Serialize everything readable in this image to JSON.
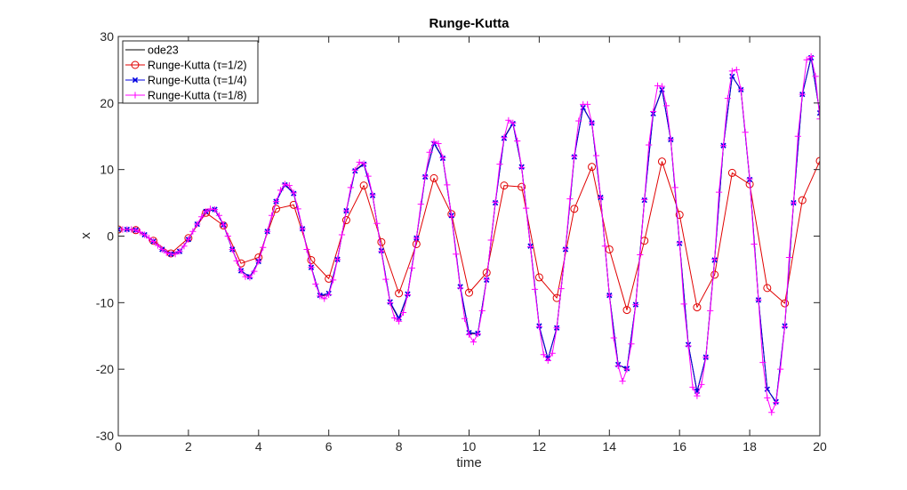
{
  "chart_data": {
    "type": "line",
    "title": "Runge-Kutta",
    "xlabel": "time",
    "ylabel": "x",
    "xlim": [
      0,
      20
    ],
    "ylim": [
      -30,
      30
    ],
    "xticks": [
      0,
      2,
      4,
      6,
      8,
      10,
      12,
      14,
      16,
      18,
      20
    ],
    "yticks": [
      -30,
      -20,
      -10,
      0,
      10,
      20,
      30
    ],
    "xtick_labels": [
      "0",
      "2",
      "4",
      "6",
      "8",
      "10",
      "12",
      "14",
      "16",
      "18",
      "20"
    ],
    "ytick_labels": [
      "-30",
      "-20",
      "-10",
      "0",
      "10",
      "20",
      "30"
    ],
    "grid": false,
    "legend_position": "top-left",
    "series": [
      {
        "name": "ode23",
        "color": "#000000",
        "marker": "none",
        "x": [
          0,
          0.25,
          0.5,
          0.75,
          1.0,
          1.25,
          1.5,
          1.75,
          2.0,
          2.25,
          2.5,
          2.75,
          3.0,
          3.25,
          3.5,
          3.75,
          4.0,
          4.25,
          4.5,
          4.75,
          5.0,
          5.25,
          5.5,
          5.75,
          6.0,
          6.25,
          6.5,
          6.75,
          7.0,
          7.25,
          7.5,
          7.75,
          8.0,
          8.25,
          8.5,
          8.75,
          9.0,
          9.25,
          9.5,
          9.75,
          10.0,
          10.25,
          10.5,
          10.75,
          11.0,
          11.25,
          11.5,
          11.75,
          12.0,
          12.25,
          12.5,
          12.75,
          13.0,
          13.25,
          13.5,
          13.75,
          14.0,
          14.25,
          14.5,
          14.75,
          15.0,
          15.25,
          15.5,
          15.75,
          16.0,
          16.25,
          16.5,
          16.75,
          17.0,
          17.25,
          17.5,
          17.75,
          18.0,
          18.25,
          18.5,
          18.75,
          19.0,
          19.25,
          19.5,
          19.75,
          20.0
        ],
        "values": [
          1.0,
          1.0,
          0.9,
          0.2,
          -0.8,
          -2.0,
          -2.7,
          -2.3,
          -0.5,
          1.8,
          3.7,
          4.0,
          1.7,
          -2.0,
          -5.2,
          -6.2,
          -3.8,
          0.7,
          5.2,
          7.8,
          6.5,
          1.1,
          -4.7,
          -9.0,
          -8.8,
          -3.5,
          3.8,
          9.9,
          10.9,
          6.2,
          -2.3,
          -10.0,
          -12.5,
          -8.8,
          -0.3,
          9.0,
          14.0,
          11.8,
          3.0,
          -7.8,
          -14.6,
          -14.7,
          -6.5,
          5.1,
          14.8,
          17.0,
          10.3,
          -1.6,
          -13.6,
          -18.5,
          -13.8,
          -1.9,
          12.0,
          19.4,
          17.0,
          5.8,
          -8.9,
          -19.3,
          -20.0,
          -10.3,
          5.5,
          18.5,
          22.1,
          14.5,
          -1.0,
          -16.3,
          -23.4,
          -18.2,
          -3.5,
          13.6,
          24.0,
          22.0,
          8.6,
          -9.6,
          -23.0,
          -25.0,
          -13.6,
          5.0,
          21.3,
          26.9,
          18.4
        ]
      },
      {
        "name": "Runge-Kutta  (τ=1/2)",
        "color": "#e00000",
        "marker": "circle",
        "x": [
          0,
          0.5,
          1.0,
          1.5,
          2.0,
          2.5,
          3.0,
          3.5,
          4.0,
          4.5,
          5.0,
          5.5,
          6.0,
          6.5,
          7.0,
          7.5,
          8.0,
          8.5,
          9.0,
          9.5,
          10.0,
          10.5,
          11.0,
          11.5,
          12.0,
          12.5,
          13.0,
          13.5,
          14.0,
          14.5,
          15.0,
          15.5,
          16.0,
          16.5,
          17.0,
          17.5,
          18.0,
          18.5,
          19.0,
          19.5,
          20.0
        ],
        "values": [
          1.0,
          0.9,
          -0.7,
          -2.6,
          -0.3,
          3.5,
          1.6,
          -4.1,
          -3.2,
          4.1,
          4.7,
          -3.6,
          -6.4,
          2.4,
          7.6,
          -0.9,
          -8.6,
          -1.2,
          8.7,
          3.3,
          -8.5,
          -5.5,
          7.6,
          7.4,
          -6.2,
          -9.3,
          4.1,
          10.4,
          -2.0,
          -11.1,
          -0.7,
          11.2,
          3.2,
          -10.7,
          -5.8,
          9.5,
          7.8,
          -7.8,
          -10.1,
          5.4,
          11.3
        ]
      },
      {
        "name": "Runge-Kutta  (τ=1/4)",
        "color": "#0000e0",
        "marker": "x",
        "x": [
          0,
          0.25,
          0.5,
          0.75,
          1.0,
          1.25,
          1.5,
          1.75,
          2.0,
          2.25,
          2.5,
          2.75,
          3.0,
          3.25,
          3.5,
          3.75,
          4.0,
          4.25,
          4.5,
          4.75,
          5.0,
          5.25,
          5.5,
          5.75,
          6.0,
          6.25,
          6.5,
          6.75,
          7.0,
          7.25,
          7.5,
          7.75,
          8.0,
          8.25,
          8.5,
          8.75,
          9.0,
          9.25,
          9.5,
          9.75,
          10.0,
          10.25,
          10.5,
          10.75,
          11.0,
          11.25,
          11.5,
          11.75,
          12.0,
          12.25,
          12.5,
          12.75,
          13.0,
          13.25,
          13.5,
          13.75,
          14.0,
          14.25,
          14.5,
          14.75,
          15.0,
          15.25,
          15.5,
          15.75,
          16.0,
          16.25,
          16.5,
          16.75,
          17.0,
          17.25,
          17.5,
          17.75,
          18.0,
          18.25,
          18.5,
          18.75,
          19.0,
          19.25,
          19.5,
          19.75,
          20.0
        ],
        "values": [
          1.0,
          1.0,
          0.9,
          0.2,
          -0.8,
          -2.0,
          -2.7,
          -2.3,
          -0.5,
          1.8,
          3.7,
          4.0,
          1.7,
          -2.0,
          -5.2,
          -6.1,
          -3.8,
          0.7,
          5.2,
          7.7,
          6.4,
          1.1,
          -4.7,
          -8.9,
          -8.6,
          -3.5,
          3.8,
          9.8,
          10.8,
          6.1,
          -2.2,
          -9.9,
          -12.3,
          -8.7,
          -0.3,
          8.9,
          13.9,
          11.7,
          3.1,
          -7.6,
          -14.5,
          -14.6,
          -6.6,
          5.0,
          14.7,
          16.9,
          10.4,
          -1.5,
          -13.5,
          -18.4,
          -13.8,
          -2.0,
          11.9,
          19.3,
          17.0,
          5.8,
          -8.9,
          -19.3,
          -19.9,
          -10.3,
          5.4,
          18.4,
          22.0,
          14.5,
          -1.1,
          -16.3,
          -23.3,
          -18.2,
          -3.6,
          13.6,
          24.0,
          22.0,
          8.5,
          -9.6,
          -23.0,
          -24.9,
          -13.5,
          5.0,
          21.3,
          26.8,
          18.5
        ]
      },
      {
        "name": "Runge-Kutta  (τ=1/8)",
        "color": "#ff00ff",
        "marker": "plus",
        "x": [
          0,
          0.125,
          0.25,
          0.375,
          0.5,
          0.625,
          0.75,
          0.875,
          1.0,
          1.125,
          1.25,
          1.375,
          1.5,
          1.625,
          1.75,
          1.875,
          2.0,
          2.125,
          2.25,
          2.375,
          2.5,
          2.625,
          2.75,
          2.875,
          3.0,
          3.125,
          3.25,
          3.375,
          3.5,
          3.625,
          3.75,
          3.875,
          4.0,
          4.125,
          4.25,
          4.375,
          4.5,
          4.625,
          4.75,
          4.875,
          5.0,
          5.125,
          5.25,
          5.375,
          5.5,
          5.625,
          5.75,
          5.875,
          6.0,
          6.125,
          6.25,
          6.375,
          6.5,
          6.625,
          6.75,
          6.875,
          7.0,
          7.125,
          7.25,
          7.375,
          7.5,
          7.625,
          7.75,
          7.875,
          8.0,
          8.125,
          8.25,
          8.375,
          8.5,
          8.625,
          8.75,
          8.875,
          9.0,
          9.125,
          9.25,
          9.375,
          9.5,
          9.625,
          9.75,
          9.875,
          10.0,
          10.125,
          10.25,
          10.375,
          10.5,
          10.625,
          10.75,
          10.875,
          11.0,
          11.125,
          11.25,
          11.375,
          11.5,
          11.625,
          11.75,
          11.875,
          12.0,
          12.125,
          12.25,
          12.375,
          12.5,
          12.625,
          12.75,
          12.875,
          13.0,
          13.125,
          13.25,
          13.375,
          13.5,
          13.625,
          13.75,
          13.875,
          14.0,
          14.125,
          14.25,
          14.375,
          14.5,
          14.625,
          14.75,
          14.875,
          15.0,
          15.125,
          15.25,
          15.375,
          15.5,
          15.625,
          15.75,
          15.875,
          16.0,
          16.125,
          16.25,
          16.375,
          16.5,
          16.625,
          16.75,
          16.875,
          17.0,
          17.125,
          17.25,
          17.375,
          17.5,
          17.625,
          17.75,
          17.875,
          18.0,
          18.125,
          18.25,
          18.375,
          18.5,
          18.625,
          18.75,
          18.875,
          19.0,
          19.125,
          19.25,
          19.375,
          19.5,
          19.625,
          19.75,
          19.875,
          20.0
        ],
        "values": [
          1.0,
          1.0,
          1.0,
          1.0,
          0.9,
          0.6,
          0.2,
          -0.3,
          -0.8,
          -1.4,
          -2.0,
          -2.5,
          -2.7,
          -2.7,
          -2.3,
          -1.5,
          -0.5,
          0.7,
          1.8,
          2.9,
          3.7,
          4.1,
          4.0,
          3.1,
          1.7,
          0.0,
          -2.0,
          -3.7,
          -5.2,
          -6.1,
          -6.2,
          -5.3,
          -3.8,
          -1.7,
          0.7,
          3.1,
          5.2,
          6.9,
          7.8,
          7.6,
          6.5,
          4.1,
          1.1,
          -2.0,
          -4.7,
          -7.2,
          -9.0,
          -9.4,
          -8.8,
          -6.6,
          -3.5,
          0.2,
          3.8,
          7.3,
          9.9,
          11.1,
          10.9,
          9.0,
          6.2,
          1.9,
          -2.3,
          -6.5,
          -10.0,
          -12.3,
          -12.8,
          -11.5,
          -8.8,
          -4.8,
          -0.3,
          4.8,
          9.0,
          12.6,
          14.2,
          13.9,
          11.8,
          7.7,
          3.0,
          -2.7,
          -7.8,
          -12.4,
          -14.8,
          -15.9,
          -14.7,
          -11.2,
          -6.5,
          -0.6,
          5.1,
          10.8,
          14.8,
          17.4,
          17.0,
          14.3,
          10.3,
          4.2,
          -1.6,
          -8.0,
          -13.6,
          -17.8,
          -18.7,
          -17.6,
          -13.8,
          -7.9,
          -1.9,
          5.6,
          12.0,
          17.3,
          19.8,
          19.8,
          17.0,
          12.1,
          5.8,
          -1.5,
          -8.9,
          -15.3,
          -19.5,
          -21.8,
          -20.0,
          -16.2,
          -10.3,
          -2.8,
          5.5,
          13.7,
          18.7,
          22.6,
          22.5,
          19.6,
          14.5,
          7.3,
          -1.0,
          -10.2,
          -16.5,
          -22.7,
          -24.0,
          -22.3,
          -18.2,
          -11.2,
          -3.5,
          6.6,
          13.6,
          20.7,
          24.8,
          25.0,
          22.0,
          15.6,
          8.6,
          -1.2,
          -9.6,
          -19.0,
          -24.3,
          -26.5,
          -25.0,
          -20.0,
          -13.6,
          -3.2,
          5.0,
          15.0,
          21.3,
          26.5,
          27.0,
          24.0,
          17.6
        ]
      }
    ]
  }
}
